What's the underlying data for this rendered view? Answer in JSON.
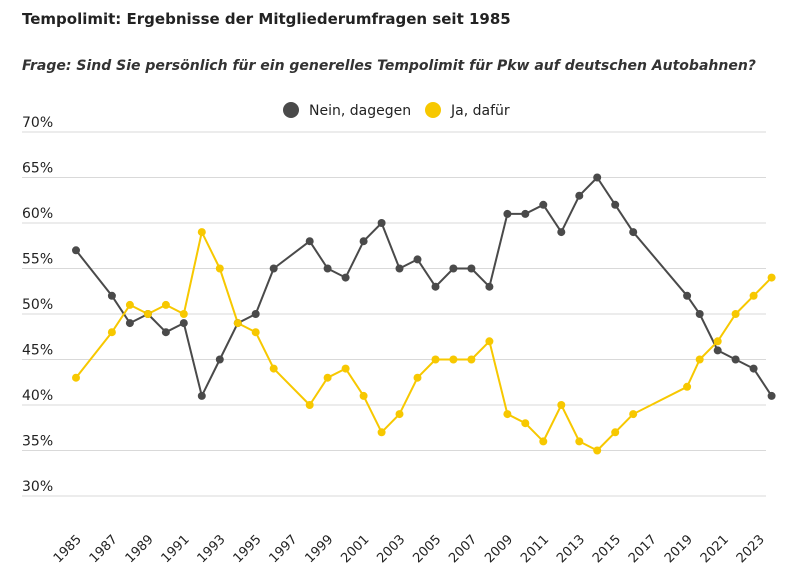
{
  "header": {
    "title": "Tempolimit: Ergebnisse der Mitgliederumfragen seit 1985",
    "question_prefix": "Frage: Sind Sie persönlich für ein generelles Tempolimit für Pkw auf deutschen ",
    "question_emphasis": "Autobahnen",
    "question_suffix": "?"
  },
  "colors": {
    "nein": "#4a4a4a",
    "ja": "#f7c800",
    "grid": "#d9d9d9"
  },
  "chart_data": {
    "type": "line",
    "title": "Tempolimit: Ergebnisse der Mitgliederumfragen seit 1985",
    "subtitle": "Frage: Sind Sie persönlich für ein generelles Tempolimit für Pkw auf deutschen Autobahnen?",
    "xlabel": "",
    "ylabel": "",
    "ylim": [
      30,
      70
    ],
    "yticks": [
      30,
      35,
      40,
      45,
      50,
      55,
      60,
      65,
      70
    ],
    "ytick_labels": [
      "30%",
      "35%",
      "40%",
      "45%",
      "50%",
      "55%",
      "60%",
      "65%",
      "70%"
    ],
    "xlim": [
      1985,
      2023
    ],
    "xticks": [
      1985,
      1987,
      1989,
      1991,
      1993,
      1995,
      1997,
      1999,
      2001,
      2003,
      2005,
      2007,
      2009,
      2011,
      2013,
      2015,
      2017,
      2019,
      2021,
      2023
    ],
    "grid": true,
    "legend_position": "top-center",
    "series": [
      {
        "name": "Nein, dagegen",
        "color": "#4a4a4a",
        "points": [
          [
            1985,
            57
          ],
          [
            1987,
            52
          ],
          [
            1988,
            49
          ],
          [
            1989,
            50
          ],
          [
            1990,
            48
          ],
          [
            1991,
            49
          ],
          [
            1992,
            41
          ],
          [
            1993,
            45
          ],
          [
            1994,
            49
          ],
          [
            1995,
            50
          ],
          [
            1996,
            55
          ],
          [
            1998,
            58
          ],
          [
            1999,
            55
          ],
          [
            2000,
            54
          ],
          [
            2001,
            58
          ],
          [
            2002,
            60
          ],
          [
            2003,
            55
          ],
          [
            2004,
            56
          ],
          [
            2005,
            53
          ],
          [
            2006,
            55
          ],
          [
            2007,
            55
          ],
          [
            2008,
            53
          ],
          [
            2009,
            61
          ],
          [
            2010,
            61
          ],
          [
            2011,
            62
          ],
          [
            2012,
            59
          ],
          [
            2013,
            63
          ],
          [
            2014,
            65
          ],
          [
            2015,
            62
          ],
          [
            2016,
            59
          ],
          [
            2019,
            52
          ],
          [
            2019.7,
            50
          ],
          [
            2020.7,
            46
          ],
          [
            2021.7,
            45
          ],
          [
            2022.7,
            44
          ],
          [
            2023.7,
            41
          ]
        ]
      },
      {
        "name": "Ja, dafür",
        "color": "#f7c800",
        "points": [
          [
            1985,
            43
          ],
          [
            1987,
            48
          ],
          [
            1988,
            51
          ],
          [
            1989,
            50
          ],
          [
            1990,
            51
          ],
          [
            1991,
            50
          ],
          [
            1992,
            59
          ],
          [
            1993,
            55
          ],
          [
            1994,
            49
          ],
          [
            1995,
            48
          ],
          [
            1996,
            44
          ],
          [
            1998,
            40
          ],
          [
            1999,
            43
          ],
          [
            2000,
            44
          ],
          [
            2001,
            41
          ],
          [
            2002,
            37
          ],
          [
            2003,
            39
          ],
          [
            2004,
            43
          ],
          [
            2005,
            45
          ],
          [
            2006,
            45
          ],
          [
            2007,
            45
          ],
          [
            2008,
            47
          ],
          [
            2009,
            39
          ],
          [
            2010,
            38
          ],
          [
            2011,
            36
          ],
          [
            2012,
            40
          ],
          [
            2013,
            36
          ],
          [
            2014,
            35
          ],
          [
            2015,
            37
          ],
          [
            2016,
            39
          ],
          [
            2019,
            42
          ],
          [
            2019.7,
            45
          ],
          [
            2020.7,
            47
          ],
          [
            2021.7,
            50
          ],
          [
            2022.7,
            52
          ],
          [
            2023.7,
            54
          ]
        ]
      }
    ]
  }
}
